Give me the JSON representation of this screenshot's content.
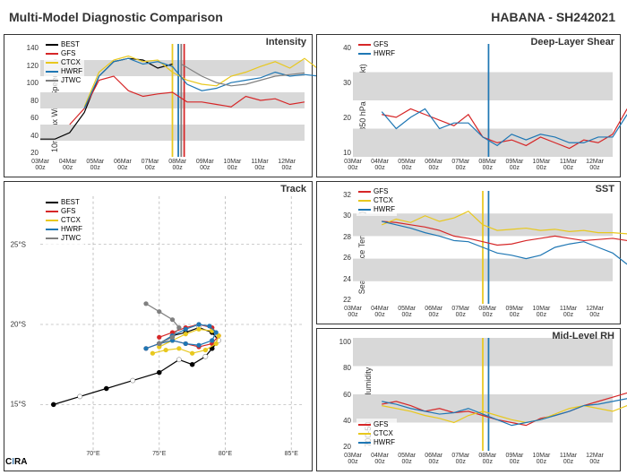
{
  "header": {
    "left": "Multi-Model Diagnostic Comparison",
    "right": "HABANA - SH242021"
  },
  "logo": {
    "prefix": "C",
    "i": "I",
    "suffix": "RA"
  },
  "colors": {
    "BEST": "#000000",
    "GFS": "#d62728",
    "CTCX": "#e8c81e",
    "HWRF": "#1f77b4",
    "JTWC": "#808080",
    "band": "#d8d8d8",
    "grid": "#e0e0e0",
    "axis": "#333333"
  },
  "xaxis_labels": [
    "03Mar 00z",
    "04Mar 00z",
    "05Mar 00z",
    "06Mar 00z",
    "07Mar 00z",
    "08Mar 00z",
    "09Mar 00z",
    "10Mar 00z",
    "11Mar 00z",
    "12Mar 00z"
  ],
  "intensity": {
    "title": "Intensity",
    "ylabel": "10m Max Wind Speed (kt)",
    "ylim": [
      0,
      140
    ],
    "yticks": [
      20,
      40,
      60,
      80,
      100,
      120,
      140
    ],
    "legend_pos": "top-left",
    "legend": [
      "BEST",
      "GFS",
      "CTCX",
      "HWRF",
      "JTWC"
    ],
    "bands": [
      [
        20,
        40
      ],
      [
        60,
        80
      ],
      [
        100,
        120
      ]
    ],
    "vlines": [
      {
        "x": 4.5,
        "color": "#e8c81e"
      },
      {
        "x": 4.7,
        "color": "#1f77b4"
      },
      {
        "x": 4.8,
        "color": "#808080"
      },
      {
        "x": 4.9,
        "color": "#d62728"
      }
    ],
    "series": {
      "BEST": [
        [
          0,
          22
        ],
        [
          0.5,
          22
        ],
        [
          1,
          30
        ],
        [
          1.5,
          55
        ],
        [
          2,
          100
        ],
        [
          2.5,
          118
        ],
        [
          3,
          122
        ],
        [
          3.5,
          120
        ],
        [
          4,
          110
        ],
        [
          4.5,
          115
        ]
      ],
      "GFS": [
        [
          1,
          40
        ],
        [
          1.5,
          60
        ],
        [
          2,
          95
        ],
        [
          2.5,
          100
        ],
        [
          3,
          82
        ],
        [
          3.5,
          75
        ],
        [
          4,
          78
        ],
        [
          4.5,
          80
        ],
        [
          5,
          68
        ],
        [
          5.5,
          68
        ],
        [
          6,
          65
        ],
        [
          6.5,
          62
        ],
        [
          7,
          75
        ],
        [
          7.5,
          70
        ],
        [
          8,
          72
        ],
        [
          8.5,
          65
        ],
        [
          9,
          68
        ]
      ],
      "CTCX": [
        [
          1.5,
          62
        ],
        [
          2,
          105
        ],
        [
          2.5,
          120
        ],
        [
          3,
          125
        ],
        [
          3.5,
          118
        ],
        [
          4,
          120
        ],
        [
          4.5,
          105
        ],
        [
          5,
          95
        ],
        [
          5.5,
          90
        ],
        [
          6,
          88
        ],
        [
          6.5,
          100
        ],
        [
          7,
          105
        ],
        [
          7.5,
          112
        ],
        [
          8,
          118
        ],
        [
          8.5,
          110
        ],
        [
          9,
          122
        ],
        [
          9.5,
          108
        ]
      ],
      "HWRF": [
        [
          1.5,
          60
        ],
        [
          2,
          100
        ],
        [
          2.5,
          118
        ],
        [
          3,
          122
        ],
        [
          3.5,
          115
        ],
        [
          4,
          118
        ],
        [
          4.5,
          112
        ],
        [
          5,
          90
        ],
        [
          5.5,
          82
        ],
        [
          6,
          85
        ],
        [
          6.5,
          92
        ],
        [
          7,
          95
        ],
        [
          7.5,
          98
        ],
        [
          8,
          105
        ],
        [
          8.5,
          100
        ],
        [
          9,
          102
        ],
        [
          9.5,
          100
        ]
      ],
      "JTWC": [
        [
          4.8,
          115
        ],
        [
          5.5,
          100
        ],
        [
          6,
          92
        ],
        [
          6.5,
          88
        ],
        [
          7,
          90
        ],
        [
          7.5,
          95
        ],
        [
          8,
          100
        ],
        [
          8.5,
          102
        ],
        [
          9,
          104
        ]
      ]
    }
  },
  "shear": {
    "title": "Deep-Layer Shear",
    "ylabel": "200-850 hPa Shear (kt)",
    "ylim": [
      0,
      40
    ],
    "yticks": [
      10,
      20,
      30,
      40
    ],
    "legend_pos": "top-left",
    "legend": [
      "GFS",
      "HWRF"
    ],
    "bands": [
      [
        0,
        10
      ],
      [
        20,
        30
      ]
    ],
    "vlines": [
      {
        "x": 4.7,
        "color": "#1f77b4"
      }
    ],
    "series": {
      "GFS": [
        [
          1,
          15
        ],
        [
          1.5,
          14
        ],
        [
          2,
          17
        ],
        [
          2.5,
          15
        ],
        [
          3,
          13
        ],
        [
          3.5,
          11
        ],
        [
          4,
          15
        ],
        [
          4.5,
          7
        ],
        [
          5,
          5
        ],
        [
          5.5,
          6
        ],
        [
          6,
          4
        ],
        [
          6.5,
          7
        ],
        [
          7,
          5
        ],
        [
          7.5,
          3
        ],
        [
          8,
          6
        ],
        [
          8.5,
          5
        ],
        [
          9,
          8
        ],
        [
          9.5,
          17
        ]
      ],
      "HWRF": [
        [
          1,
          16
        ],
        [
          1.5,
          10
        ],
        [
          2,
          14
        ],
        [
          2.5,
          17
        ],
        [
          3,
          10
        ],
        [
          3.5,
          12
        ],
        [
          4,
          12
        ],
        [
          4.5,
          7
        ],
        [
          5,
          4
        ],
        [
          5.5,
          8
        ],
        [
          6,
          6
        ],
        [
          6.5,
          8
        ],
        [
          7,
          7
        ],
        [
          7.5,
          5
        ],
        [
          8,
          5
        ],
        [
          8.5,
          7
        ],
        [
          9,
          7
        ],
        [
          9.5,
          15
        ]
      ]
    }
  },
  "sst": {
    "title": "SST",
    "ylabel": "Sea Surface Temp (°C)",
    "ylim": [
      22,
      32
    ],
    "yticks": [
      22,
      24,
      26,
      28,
      30,
      32
    ],
    "legend_pos": "top-left",
    "legend": [
      "GFS",
      "CTCX",
      "HWRF"
    ],
    "bands": [
      [
        24,
        26
      ],
      [
        28,
        30
      ]
    ],
    "vlines": [
      {
        "x": 4.5,
        "color": "#e8c81e"
      },
      {
        "x": 4.7,
        "color": "#1f77b4"
      }
    ],
    "series": {
      "GFS": [
        [
          1,
          29.3
        ],
        [
          1.5,
          29.2
        ],
        [
          2,
          29
        ],
        [
          2.5,
          28.8
        ],
        [
          3,
          28.5
        ],
        [
          3.5,
          28
        ],
        [
          4,
          27.8
        ],
        [
          4.5,
          27.5
        ],
        [
          5,
          27.2
        ],
        [
          5.5,
          27.3
        ],
        [
          6,
          27.6
        ],
        [
          6.5,
          27.8
        ],
        [
          7,
          28
        ],
        [
          7.5,
          27.8
        ],
        [
          8,
          27.6
        ],
        [
          8.5,
          27.7
        ],
        [
          9,
          27.8
        ],
        [
          9.5,
          27.6
        ]
      ],
      "CTCX": [
        [
          1,
          29
        ],
        [
          1.5,
          29.5
        ],
        [
          2,
          29.2
        ],
        [
          2.5,
          29.8
        ],
        [
          3,
          29.3
        ],
        [
          3.5,
          29.6
        ],
        [
          4,
          30.2
        ],
        [
          4.5,
          29
        ],
        [
          5,
          28.5
        ],
        [
          5.5,
          28.6
        ],
        [
          6,
          28.7
        ],
        [
          6.5,
          28.5
        ],
        [
          7,
          28.6
        ],
        [
          7.5,
          28.4
        ],
        [
          8,
          28.5
        ],
        [
          8.5,
          28.3
        ],
        [
          9,
          28.3
        ],
        [
          9.5,
          28.2
        ]
      ],
      "HWRF": [
        [
          1,
          29.3
        ],
        [
          1.5,
          29
        ],
        [
          2,
          28.7
        ],
        [
          2.5,
          28.3
        ],
        [
          3,
          28
        ],
        [
          3.5,
          27.6
        ],
        [
          4,
          27.5
        ],
        [
          4.5,
          27
        ],
        [
          5,
          26.5
        ],
        [
          5.5,
          26.3
        ],
        [
          6,
          26
        ],
        [
          6.5,
          26.3
        ],
        [
          7,
          27
        ],
        [
          7.5,
          27.3
        ],
        [
          8,
          27.5
        ],
        [
          8.5,
          27
        ],
        [
          9,
          26.5
        ],
        [
          9.5,
          25.5
        ]
      ]
    }
  },
  "rh": {
    "title": "Mid-Level RH",
    "ylabel": "700-500 hPa Humidity (%)",
    "ylim": [
      20,
      100
    ],
    "yticks": [
      20,
      40,
      60,
      80,
      100
    ],
    "legend_pos": "bottom-left",
    "legend": [
      "GFS",
      "CTCX",
      "HWRF"
    ],
    "bands": [
      [
        40,
        60
      ],
      [
        80,
        100
      ]
    ],
    "vlines": [
      {
        "x": 4.5,
        "color": "#e8c81e"
      },
      {
        "x": 4.7,
        "color": "#1f77b4"
      }
    ],
    "series": {
      "GFS": [
        [
          1,
          53
        ],
        [
          1.5,
          55
        ],
        [
          2,
          52
        ],
        [
          2.5,
          48
        ],
        [
          3,
          50
        ],
        [
          3.5,
          47
        ],
        [
          4,
          48
        ],
        [
          4.5,
          45
        ],
        [
          5,
          42
        ],
        [
          5.5,
          40
        ],
        [
          6,
          38
        ],
        [
          6.5,
          43
        ],
        [
          7,
          45
        ],
        [
          7.5,
          48
        ],
        [
          8,
          52
        ],
        [
          8.5,
          55
        ],
        [
          9,
          58
        ],
        [
          9.5,
          61
        ]
      ],
      "CTCX": [
        [
          1,
          52
        ],
        [
          1.5,
          50
        ],
        [
          2,
          48
        ],
        [
          2.5,
          45
        ],
        [
          3,
          43
        ],
        [
          3.5,
          40
        ],
        [
          4,
          45
        ],
        [
          4.5,
          48
        ],
        [
          5,
          45
        ],
        [
          5.5,
          42
        ],
        [
          6,
          40
        ],
        [
          6.5,
          42
        ],
        [
          7,
          46
        ],
        [
          7.5,
          50
        ],
        [
          8,
          52
        ],
        [
          8.5,
          50
        ],
        [
          9,
          48
        ],
        [
          9.5,
          52
        ]
      ],
      "HWRF": [
        [
          1,
          55
        ],
        [
          1.5,
          53
        ],
        [
          2,
          50
        ],
        [
          2.5,
          48
        ],
        [
          3,
          46
        ],
        [
          3.5,
          47
        ],
        [
          4,
          50
        ],
        [
          4.5,
          46
        ],
        [
          5,
          42
        ],
        [
          5.5,
          38
        ],
        [
          6,
          40
        ],
        [
          6.5,
          42
        ],
        [
          7,
          45
        ],
        [
          7.5,
          48
        ],
        [
          8,
          52
        ],
        [
          8.5,
          53
        ],
        [
          9,
          55
        ],
        [
          9.5,
          57
        ]
      ]
    }
  },
  "track": {
    "title": "Track",
    "xlim": [
      66,
      86
    ],
    "ylim": [
      28,
      12
    ],
    "xticks": [
      "70°E",
      "75°E",
      "80°E",
      "85°E"
    ],
    "xtick_vals": [
      70,
      75,
      80,
      85
    ],
    "yticks": [
      "15°S",
      "20°S",
      "25°S"
    ],
    "ytick_vals": [
      15,
      20,
      25
    ],
    "legend_pos": "top-left",
    "legend": [
      "BEST",
      "GFS",
      "CTCX",
      "HWRF",
      "JTWC"
    ],
    "series": {
      "BEST": [
        [
          67,
          15
        ],
        [
          69,
          15.5
        ],
        [
          71,
          16
        ],
        [
          73,
          16.5
        ],
        [
          75,
          17
        ],
        [
          76.5,
          17.8
        ],
        [
          77.5,
          17.5
        ],
        [
          78.5,
          18
        ],
        [
          79,
          18.5
        ],
        [
          79.5,
          19
        ],
        [
          79,
          19.5
        ],
        [
          78,
          19.8
        ],
        [
          77,
          19.5
        ],
        [
          76,
          19.3
        ],
        [
          75,
          18.8
        ]
      ],
      "GFS": [
        [
          74,
          18.5
        ],
        [
          75,
          18.8
        ],
        [
          76,
          19
        ],
        [
          77,
          18.8
        ],
        [
          78,
          18.6
        ],
        [
          79,
          18.8
        ],
        [
          79.5,
          19.3
        ],
        [
          79,
          19.8
        ],
        [
          78,
          20
        ],
        [
          77,
          19.8
        ],
        [
          76,
          19.5
        ],
        [
          75,
          19.2
        ]
      ],
      "CTCX": [
        [
          74.5,
          18.2
        ],
        [
          75.5,
          18.4
        ],
        [
          76.5,
          18.5
        ],
        [
          77.5,
          18.2
        ],
        [
          78.5,
          18.4
        ],
        [
          79.3,
          18.8
        ],
        [
          79.5,
          19.3
        ],
        [
          79,
          19.6
        ],
        [
          78,
          19.7
        ],
        [
          77,
          19.4
        ],
        [
          76,
          19
        ],
        [
          75,
          18.6
        ]
      ],
      "HWRF": [
        [
          74,
          18.5
        ],
        [
          75,
          18.8
        ],
        [
          76,
          19
        ],
        [
          77,
          18.8
        ],
        [
          78,
          18.7
        ],
        [
          79,
          19
        ],
        [
          79.3,
          19.5
        ],
        [
          78.8,
          19.9
        ],
        [
          78,
          20
        ],
        [
          77,
          19.7
        ],
        [
          76,
          19.3
        ],
        [
          75,
          18.8
        ]
      ],
      "JTWC": [
        [
          75,
          18.8
        ],
        [
          76,
          19.2
        ],
        [
          76.5,
          19.8
        ],
        [
          76,
          20.3
        ],
        [
          75,
          20.8
        ],
        [
          74,
          21.3
        ]
      ]
    }
  }
}
